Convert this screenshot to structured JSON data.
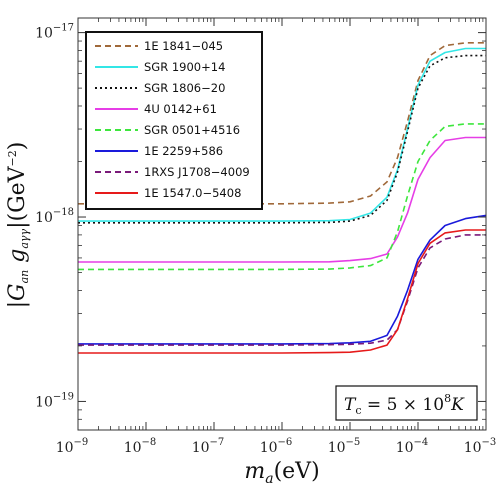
{
  "chart_data": {
    "type": "line",
    "xscale": "log",
    "yscale": "log",
    "xlim": [
      1e-09,
      0.001
    ],
    "ylim": [
      7e-20,
      1.2e-17
    ],
    "xlabel": {
      "var": "m",
      "sub": "a",
      "rest": "(eV)"
    },
    "ylabel": "|G_an g_aγγ|(GeV^-2)",
    "x_ticks": [
      {
        "base": "10",
        "exp": "−9"
      },
      {
        "base": "10",
        "exp": "−8"
      },
      {
        "base": "10",
        "exp": "−7"
      },
      {
        "base": "10",
        "exp": "−6"
      },
      {
        "base": "10",
        "exp": "−5"
      },
      {
        "base": "10",
        "exp": "−4"
      },
      {
        "base": "10",
        "exp": "−3"
      }
    ],
    "y_ticks": [
      {
        "base": "10",
        "exp": "−19",
        "value": 1e-19
      },
      {
        "base": "10",
        "exp": "−18",
        "value": 1e-18
      },
      {
        "base": "10",
        "exp": "−17",
        "value": 1e-17
      }
    ],
    "annotation": {
      "var": "T",
      "sub": "c",
      "eq": " = 5 × 10",
      "exp": "8",
      "unit": "K"
    },
    "legend_position": "top-left",
    "x": [
      1e-09,
      1e-08,
      1e-07,
      1e-06,
      5e-06,
      1e-05,
      2e-05,
      3.5e-05,
      5e-05,
      7e-05,
      0.0001,
      0.00015,
      0.00025,
      0.0005,
      0.001
    ],
    "series": [
      {
        "name": "1E 1841−045",
        "color": "#a0693a",
        "dash": "6,4",
        "values": [
          1.18e-18,
          1.18e-18,
          1.18e-18,
          1.18e-18,
          1.19e-18,
          1.21e-18,
          1.3e-18,
          1.55e-18,
          2.1e-18,
          3.3e-18,
          5.5e-18,
          7.5e-18,
          8.5e-18,
          8.8e-18,
          8.8e-18
        ]
      },
      {
        "name": "SGR 1900+14",
        "color": "#33e6e6",
        "dash": "",
        "values": [
          9.5e-19,
          9.5e-19,
          9.5e-19,
          9.5e-19,
          9.55e-19,
          9.7e-19,
          1.05e-18,
          1.28e-18,
          1.8e-18,
          3e-18,
          5.2e-18,
          7e-18,
          7.8e-18,
          8.2e-18,
          8.2e-18
        ]
      },
      {
        "name": "SGR 1806−20",
        "color": "#111111",
        "dash": "2,3",
        "values": [
          9.3e-19,
          9.3e-19,
          9.3e-19,
          9.3e-19,
          9.35e-19,
          9.5e-19,
          1.02e-18,
          1.23e-18,
          1.75e-18,
          2.9e-18,
          5e-18,
          6.6e-18,
          7.3e-18,
          7.5e-18,
          7.5e-18
        ]
      },
      {
        "name": "4U 0142+61",
        "color": "#e63ee6",
        "dash": "",
        "values": [
          5.7e-19,
          5.7e-19,
          5.7e-19,
          5.7e-19,
          5.72e-19,
          5.8e-19,
          5.95e-19,
          6.3e-19,
          7.8e-19,
          1.05e-18,
          1.6e-18,
          2.1e-18,
          2.6e-18,
          2.7e-18,
          2.7e-18
        ]
      },
      {
        "name": "SGR 0501+4516",
        "color": "#3de63d",
        "dash": "6,4",
        "values": [
          5.2e-19,
          5.2e-19,
          5.2e-19,
          5.2e-19,
          5.22e-19,
          5.3e-19,
          5.45e-19,
          6e-19,
          8.3e-19,
          1.3e-18,
          2e-18,
          2.6e-18,
          3.1e-18,
          3.2e-18,
          3.2e-18
        ]
      },
      {
        "name": "1E 2259+586",
        "color": "#1a1adb",
        "dash": "",
        "values": [
          2.05e-19,
          2.05e-19,
          2.05e-19,
          2.05e-19,
          2.06e-19,
          2.08e-19,
          2.12e-19,
          2.28e-19,
          2.9e-19,
          4e-19,
          5.9e-19,
          7.5e-19,
          9e-19,
          9.8e-19,
          1.02e-18
        ]
      },
      {
        "name": "1RXS J1708−4009",
        "color": "#7a1a7a",
        "dash": "6,4",
        "values": [
          2.02e-19,
          2.02e-19,
          2.02e-19,
          2.02e-19,
          2.03e-19,
          2.04e-19,
          2.07e-19,
          2.15e-19,
          2.45e-19,
          3.5e-19,
          5.3e-19,
          6.8e-19,
          7.6e-19,
          8e-19,
          8e-19
        ]
      },
      {
        "name": "1E 1547.0−5408",
        "color": "#e61a1a",
        "dash": "",
        "values": [
          1.83e-19,
          1.83e-19,
          1.83e-19,
          1.83e-19,
          1.84e-19,
          1.85e-19,
          1.9e-19,
          2.02e-19,
          2.45e-19,
          3.6e-19,
          5.6e-19,
          7.2e-19,
          8.2e-19,
          8.5e-19,
          8.5e-19
        ]
      }
    ]
  }
}
